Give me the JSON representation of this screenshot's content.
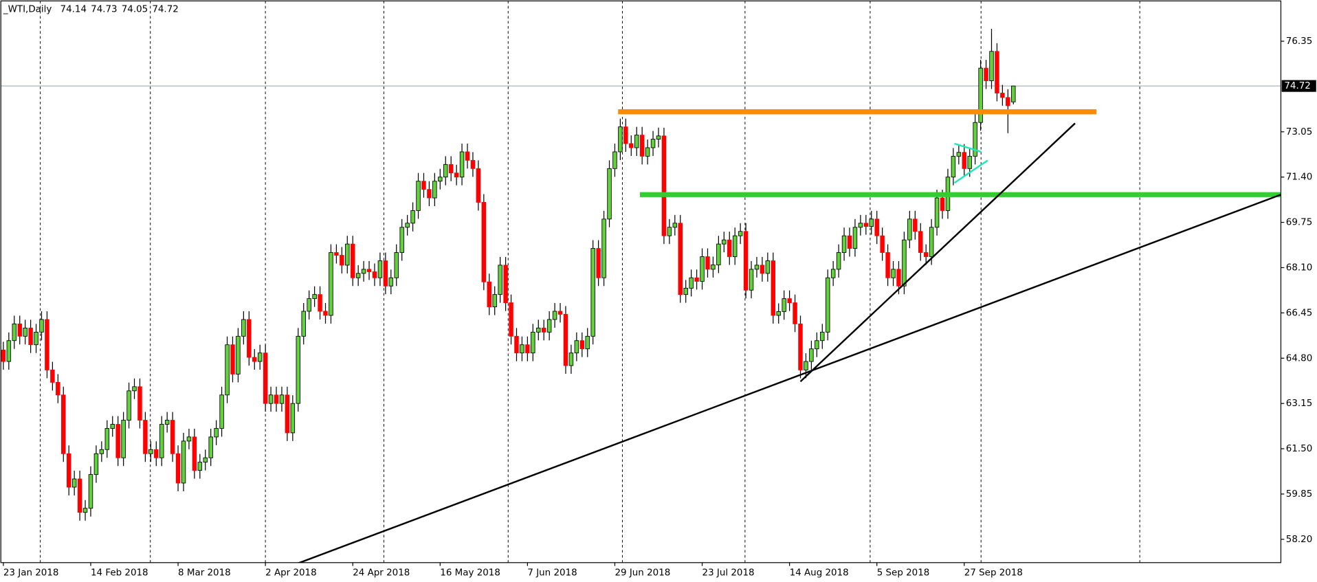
{
  "chart_data": {
    "type": "candlestick",
    "title": "_WTI,Daily",
    "categories": [
      "23 Jan 2018",
      null,
      null,
      null,
      null,
      null,
      null,
      null,
      null,
      null,
      null,
      null,
      null,
      null,
      null,
      null,
      "14 Feb 2018",
      null,
      null,
      null,
      null,
      null,
      null,
      null,
      null,
      null,
      null,
      null,
      null,
      null,
      null,
      null,
      "8 Mar 2018",
      null,
      null,
      null,
      null,
      null,
      null,
      null,
      null,
      null,
      null,
      null,
      null,
      null,
      null,
      null,
      "2 Apr 2018",
      null,
      null,
      null,
      null,
      null,
      null,
      null,
      null,
      null,
      null,
      null,
      null,
      null,
      null,
      null,
      "24 Apr 2018",
      null,
      null,
      null,
      null,
      null,
      null,
      null,
      null,
      null,
      null,
      null,
      null,
      null,
      null,
      null,
      "16 May 2018",
      null,
      null,
      null,
      null,
      null,
      null,
      null,
      null,
      null,
      null,
      null,
      null,
      null,
      null,
      null,
      "7 Jun 2018",
      null,
      null,
      null,
      null,
      null,
      null,
      null,
      null,
      null,
      null,
      null,
      null,
      null,
      null,
      null,
      "29 Jun 2018",
      null,
      null,
      null,
      null,
      null,
      null,
      null,
      null,
      null,
      null,
      null,
      null,
      null,
      null,
      null,
      "23 Jul 2018",
      null,
      null,
      null,
      null,
      null,
      null,
      null,
      null,
      null,
      null,
      null,
      null,
      null,
      null,
      null,
      "14 Aug 2018",
      null,
      null,
      null,
      null,
      null,
      null,
      null,
      null,
      null,
      null,
      null,
      null,
      null,
      null,
      null,
      "5 Sep 2018",
      null,
      null,
      null,
      null,
      null,
      null,
      null,
      null,
      null,
      null,
      null,
      null,
      null,
      null,
      null,
      "27 Sep 2018",
      null,
      null,
      null,
      null,
      null,
      null,
      null,
      null,
      null
    ],
    "open": [
      65.1,
      64.68,
      65.44,
      66.05,
      65.6,
      65.9,
      65.29,
      65.75,
      66.21,
      64.37,
      63.92,
      63.46,
      61.32,
      60.1,
      60.4,
      59.18,
      59.33,
      60.56,
      61.32,
      61.47,
      62.24,
      62.39,
      61.17,
      62.54,
      63.61,
      63.76,
      62.54,
      61.32,
      61.47,
      61.17,
      62.39,
      62.54,
      61.32,
      60.25,
      61.78,
      61.93,
      60.71,
      61.01,
      61.17,
      61.93,
      62.24,
      63.46,
      65.29,
      64.22,
      65.6,
      66.21,
      64.83,
      64.68,
      64.99,
      63.15,
      63.46,
      63.15,
      63.46,
      62.08,
      63.15,
      65.6,
      66.51,
      66.97,
      67.12,
      66.51,
      66.36,
      68.65,
      68.55,
      68.19,
      68.96,
      67.73,
      67.89,
      68.04,
      67.95,
      67.73,
      68.35,
      67.43,
      67.73,
      68.65,
      69.57,
      69.72,
      70.18,
      71.25,
      70.95,
      70.64,
      71.25,
      71.4,
      71.86,
      71.55,
      71.4,
      72.32,
      72.01,
      71.71,
      70.48,
      67.58,
      66.67,
      67.12,
      68.19,
      66.82,
      65.6,
      64.99,
      65.29,
      64.99,
      65.75,
      65.9,
      65.75,
      66.21,
      66.51,
      66.4,
      64.53,
      64.99,
      65.44,
      65.14,
      65.6,
      68.8,
      67.73,
      69.87,
      71.71,
      72.32,
      73.23,
      72.62,
      72.47,
      72.93,
      72.16,
      72.47,
      72.78,
      72.9,
      69.26,
      69.57,
      69.72,
      67.12,
      67.35,
      67.73,
      67.6,
      68.5,
      68.04,
      68.2,
      68.96,
      69.11,
      68.5,
      69.26,
      69.42,
      67.28,
      68.04,
      68.19,
      67.89,
      68.35,
      66.36,
      66.5,
      66.97,
      66.82,
      66.05,
      64.37,
      64.68,
      65.14,
      65.44,
      65.75,
      67.73,
      68.04,
      68.65,
      69.26,
      68.8,
      69.57,
      69.72,
      69.6,
      69.87,
      69.26,
      68.65,
      67.73,
      68.04,
      67.43,
      69.11,
      69.87,
      69.42,
      68.65,
      68.5,
      69.57,
      70.64,
      70.18,
      71.4,
      72.16,
      72.3,
      71.71,
      72.16,
      73.39,
      75.37,
      74.91,
      75.98,
      74.46,
      74.3,
      74.14
    ],
    "high": [
      65.4,
      65.74,
      66.35,
      66.35,
      66.2,
      66.2,
      66.05,
      66.51,
      66.51,
      64.67,
      64.22,
      63.76,
      61.62,
      60.7,
      60.7,
      59.63,
      60.86,
      61.62,
      61.77,
      62.54,
      62.69,
      62.69,
      62.84,
      63.91,
      64.06,
      64.06,
      62.84,
      61.77,
      61.77,
      62.69,
      62.84,
      62.84,
      61.62,
      62.08,
      62.23,
      62.23,
      61.31,
      61.47,
      62.23,
      62.54,
      63.76,
      65.59,
      65.59,
      65.9,
      66.51,
      66.51,
      65.13,
      65.29,
      65.29,
      63.76,
      63.76,
      63.76,
      63.76,
      63.45,
      65.9,
      66.81,
      67.27,
      67.42,
      67.42,
      66.81,
      68.95,
      68.95,
      68.85,
      69.26,
      69.26,
      68.19,
      68.34,
      68.34,
      68.25,
      68.65,
      68.65,
      68.03,
      68.95,
      69.87,
      70.02,
      70.48,
      71.55,
      71.55,
      71.25,
      71.55,
      71.7,
      72.16,
      72.16,
      71.85,
      72.62,
      72.62,
      72.31,
      72.01,
      70.78,
      67.88,
      67.42,
      68.49,
      68.49,
      67.12,
      65.9,
      65.59,
      65.59,
      66.05,
      66.2,
      66.2,
      66.51,
      66.81,
      66.81,
      66.7,
      65.29,
      65.74,
      65.74,
      65.9,
      69.1,
      69.1,
      70.17,
      72.01,
      72.62,
      73.53,
      73.53,
      72.92,
      73.23,
      73.23,
      72.77,
      73.08,
      73.2,
      73.2,
      69.87,
      70.02,
      70.02,
      67.65,
      68.03,
      68.03,
      68.8,
      68.8,
      68.5,
      69.26,
      69.41,
      69.41,
      69.56,
      69.72,
      69.72,
      68.34,
      68.49,
      68.49,
      68.65,
      68.65,
      66.8,
      67.27,
      67.27,
      67.12,
      66.35,
      64.98,
      65.44,
      65.74,
      66.05,
      68.03,
      68.34,
      68.95,
      69.56,
      69.56,
      69.87,
      70.02,
      70.02,
      70.17,
      70.17,
      69.56,
      68.95,
      68.34,
      68.34,
      69.41,
      70.17,
      70.17,
      69.72,
      68.95,
      69.87,
      70.94,
      70.94,
      71.7,
      72.46,
      72.6,
      72.6,
      72.46,
      73.69,
      75.67,
      75.67,
      76.8,
      76.28,
      74.76,
      74.6,
      74.73
    ],
    "low": [
      64.38,
      64.38,
      65.14,
      65.3,
      65.3,
      64.99,
      64.99,
      65.45,
      64.07,
      63.62,
      63.16,
      61.02,
      59.8,
      59.8,
      58.88,
      58.88,
      59.03,
      60.26,
      61.02,
      61.17,
      61.94,
      60.87,
      60.87,
      62.24,
      63.31,
      62.24,
      61.02,
      61.02,
      60.87,
      60.87,
      62.09,
      61.02,
      59.95,
      59.95,
      61.48,
      60.41,
      60.41,
      60.71,
      60.87,
      61.63,
      61.94,
      63.16,
      63.92,
      63.92,
      65.3,
      64.53,
      64.38,
      64.38,
      62.85,
      62.85,
      62.85,
      62.85,
      61.78,
      61.78,
      62.85,
      65.3,
      66.21,
      66.67,
      66.21,
      66.06,
      66.06,
      68.25,
      67.89,
      67.89,
      67.43,
      67.43,
      67.59,
      67.65,
      67.43,
      67.43,
      67.13,
      67.13,
      67.43,
      68.35,
      69.27,
      69.42,
      69.88,
      70.65,
      70.34,
      70.34,
      70.95,
      71.1,
      71.25,
      71.1,
      71.1,
      71.71,
      71.41,
      70.18,
      67.28,
      66.37,
      66.37,
      66.82,
      66.52,
      65.3,
      64.69,
      64.69,
      64.69,
      64.69,
      65.45,
      65.45,
      65.45,
      65.91,
      66.1,
      64.23,
      64.23,
      64.69,
      64.84,
      64.84,
      65.3,
      67.43,
      67.43,
      69.57,
      71.41,
      72.02,
      72.32,
      72.17,
      72.17,
      71.86,
      71.86,
      72.17,
      72.48,
      68.96,
      68.96,
      69.27,
      66.82,
      66.82,
      67.05,
      67.3,
      67.3,
      67.74,
      67.74,
      67.9,
      68.66,
      68.2,
      68.2,
      68.96,
      66.98,
      66.98,
      67.74,
      67.59,
      67.59,
      66.06,
      66.06,
      66.2,
      66.52,
      65.75,
      64.07,
      64.07,
      64.38,
      64.84,
      65.14,
      65.45,
      67.43,
      67.74,
      68.35,
      68.5,
      68.5,
      69.27,
      69.3,
      69.3,
      68.96,
      68.35,
      67.43,
      67.43,
      67.13,
      67.13,
      68.81,
      69.12,
      68.35,
      68.2,
      68.2,
      69.27,
      69.88,
      69.88,
      71.1,
      71.86,
      71.41,
      71.41,
      71.86,
      73.09,
      74.61,
      74.61,
      74.16,
      74.0,
      73.0,
      74.05
    ],
    "close": [
      64.68,
      65.44,
      66.05,
      65.6,
      65.9,
      65.29,
      65.75,
      66.21,
      64.37,
      63.92,
      63.46,
      61.32,
      60.1,
      60.4,
      59.18,
      59.33,
      60.56,
      61.32,
      61.47,
      62.24,
      62.39,
      61.17,
      62.54,
      63.61,
      63.76,
      62.54,
      61.32,
      61.47,
      61.17,
      62.39,
      62.54,
      61.32,
      60.25,
      61.78,
      61.93,
      60.71,
      61.01,
      61.17,
      61.93,
      62.24,
      63.46,
      65.29,
      64.22,
      65.6,
      66.21,
      64.83,
      64.68,
      64.99,
      63.15,
      63.46,
      63.15,
      63.46,
      62.08,
      63.15,
      65.6,
      66.51,
      66.97,
      67.12,
      66.51,
      66.36,
      68.65,
      68.55,
      68.19,
      68.96,
      67.73,
      67.89,
      68.04,
      67.95,
      67.73,
      68.35,
      67.43,
      67.73,
      68.65,
      69.57,
      69.72,
      70.18,
      71.25,
      70.95,
      70.64,
      71.25,
      71.4,
      71.86,
      71.55,
      71.4,
      72.32,
      72.01,
      71.71,
      70.48,
      67.58,
      66.67,
      67.12,
      68.19,
      66.82,
      65.6,
      64.99,
      65.29,
      64.99,
      65.75,
      65.9,
      65.75,
      66.21,
      66.51,
      66.4,
      64.53,
      64.99,
      65.44,
      65.14,
      65.6,
      68.8,
      67.73,
      69.87,
      71.71,
      72.32,
      73.23,
      72.62,
      72.47,
      72.93,
      72.16,
      72.47,
      72.78,
      72.9,
      69.26,
      69.57,
      69.72,
      67.12,
      67.35,
      67.73,
      67.6,
      68.5,
      68.04,
      68.2,
      68.96,
      69.11,
      68.5,
      69.26,
      69.42,
      67.28,
      68.04,
      68.19,
      67.89,
      68.35,
      66.36,
      66.5,
      66.97,
      66.82,
      66.05,
      64.37,
      64.68,
      65.14,
      65.44,
      65.75,
      67.73,
      68.04,
      68.65,
      69.26,
      68.8,
      69.57,
      69.72,
      69.6,
      69.87,
      69.26,
      68.65,
      67.73,
      68.04,
      67.43,
      69.11,
      69.87,
      69.42,
      68.65,
      68.5,
      69.57,
      70.64,
      70.18,
      71.4,
      72.16,
      72.3,
      71.71,
      72.16,
      73.39,
      75.37,
      74.91,
      75.98,
      74.46,
      74.3,
      74.0,
      74.72
    ],
    "up_color": "#62d13c",
    "down_color": "#ff0000",
    "price_line_color": "#a9b4be",
    "ylim": [
      57.35,
      77.82
    ],
    "yticks": [
      76.35,
      73.05,
      {
        "value": 71.4,
        "label": "71.40"
      },
      69.75,
      {
        "value": 68.1,
        "label": "68.10"
      },
      66.45,
      {
        "value": 64.8,
        "label": "64.80"
      },
      63.15,
      {
        "value": 61.5,
        "label": "61.50"
      },
      59.85,
      {
        "value": 58.2,
        "label": "58.20"
      }
    ],
    "drawings": [
      {
        "color": "#ff8c00",
        "width": 6,
        "points": [
          [
            112.6,
            73.78
          ],
          [
            200.2,
            73.78
          ]
        ]
      },
      {
        "color": "#33cc33",
        "width": 6,
        "points": [
          [
            116.6,
            70.76
          ],
          [
            234,
            70.76
          ]
        ]
      },
      {
        "color": "#000000",
        "width": 2,
        "points": [
          [
            53.5,
            57.29
          ],
          [
            234,
            70.76
          ]
        ]
      },
      {
        "color": "#000000",
        "width": 2,
        "points": [
          [
            146,
            63.95
          ],
          [
            196.3,
            73.36
          ]
        ]
      },
      {
        "color": "#1de9b6",
        "width": 2,
        "points": [
          [
            174.2,
            72.62
          ],
          [
            179.1,
            72.32
          ]
        ]
      },
      {
        "color": "#1de9b6",
        "width": 2,
        "points": [
          [
            174.2,
            71.19
          ],
          [
            180.3,
            72.01
          ]
        ]
      }
    ]
  }
}
